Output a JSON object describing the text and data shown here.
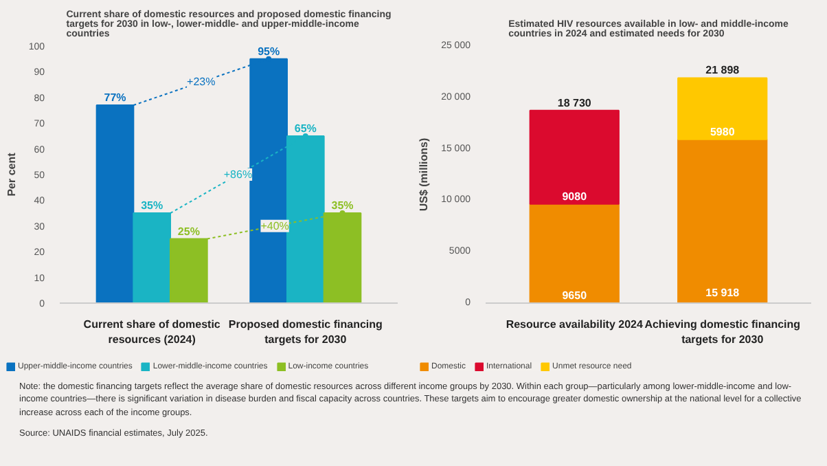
{
  "chart_data": [
    {
      "type": "bar",
      "title": "Current share of domestic resources and proposed domestic financing targets for 2030 in low-, lower-middle- and upper-middle-income countries",
      "ylabel": "Per cent",
      "categories": [
        "Current share of domestic resources (2024)",
        "Proposed domestic financing targets for 2030"
      ],
      "series": [
        {
          "name": "Upper-middle-income countries",
          "color": "#0a72c0",
          "values": [
            77,
            95
          ],
          "value_labels": [
            "77%",
            "95%"
          ]
        },
        {
          "name": "Lower-middle-income countries",
          "color": "#1ab4c4",
          "values": [
            35,
            65
          ],
          "value_labels": [
            "35%",
            "65%"
          ]
        },
        {
          "name": "Low-income countries",
          "color": "#8dbf24",
          "values": [
            25,
            35
          ],
          "value_labels": [
            "25%",
            "35%"
          ]
        }
      ],
      "ylim": [
        0,
        100
      ],
      "yticks": [
        0,
        10,
        20,
        30,
        40,
        50,
        60,
        70,
        80,
        90,
        100
      ],
      "grid": false,
      "legend": "bottom",
      "annotations": [
        "+23%",
        "+86%",
        "+40%",
        "Note: the domestic financing targets reflect the average share of domestic resources across different income groups by 2030. Within each group—particularly among lower-middle-income and low-income countries—there is significant variation in disease burden and fiscal capacity across countries. These targets aim to encourage greater domestic ownership at the national level for a collective increase across each of the income groups.",
        "Source: UNAIDS financial estimates, July 2025."
      ]
    },
    {
      "type": "bar",
      "stacked": true,
      "title": "Estimated HIV resources available in low- and middle-income countries in 2024 and estimated needs for 2030",
      "ylabel": "US$ (millions)",
      "categories": [
        "Resource availability 2024",
        "Achieving domestic financing targets for 2030"
      ],
      "series": [
        {
          "name": "Domestic",
          "color": "#f08c00",
          "values": [
            9650,
            15918
          ],
          "value_labels": [
            "9650",
            "15 918"
          ]
        },
        {
          "name": "International",
          "color": "#db0a2e",
          "values": [
            9080,
            null
          ],
          "value_labels": [
            "9080",
            null
          ]
        },
        {
          "name": "Unmet resource need",
          "color": "#ffc800",
          "values": [
            null,
            5980
          ],
          "value_labels": [
            null,
            "5980"
          ]
        }
      ],
      "totals": [
        "18 730",
        "21 898"
      ],
      "ylim": [
        0,
        25000
      ],
      "yticks": [
        0,
        5000,
        {
          "value": 10000,
          "label": "10 000"
        },
        {
          "value": 15000,
          "label": "15 000"
        },
        {
          "value": 20000,
          "label": "20 000"
        },
        {
          "value": 25000,
          "label": "25 000"
        }
      ],
      "grid": false,
      "legend": "bottom"
    }
  ]
}
